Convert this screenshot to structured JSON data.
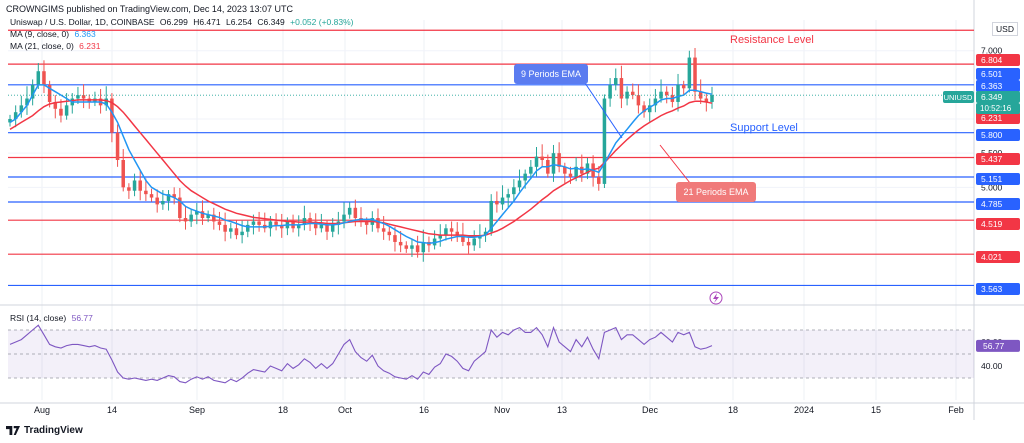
{
  "header": {
    "publisher": "CROWNGIMS published on TradingView.com, Dec 14, 2023 13:07 UTC"
  },
  "symbol_line": {
    "name": "Uniswap / U.S. Dollar, 1D, COINBASE",
    "o": "O6.299",
    "h": "H6.471",
    "l": "L6.254",
    "c": "C6.349",
    "chg": "+0.052 (+0.83%)"
  },
  "ma9": {
    "label": "MA (9, close, 0)",
    "value": "6.363",
    "color": "#2196f3"
  },
  "ma21": {
    "label": "MA (21, close, 0)",
    "value": "6.231",
    "color": "#f23645"
  },
  "rsi": {
    "label": "RSI (14, close)",
    "value": "56.77",
    "color": "#7e57c2"
  },
  "currency": "USD",
  "ticker_tag": "UNIUSD",
  "countdown": "10:52:16",
  "annotations": {
    "resistance": "Resistance Level",
    "support": "Support Level",
    "ema9": "9 Periods EMA",
    "ema21": "21 Periods EMA"
  },
  "footer_logo": "TradingView",
  "colors": {
    "up": "#26a69a",
    "down": "#ef5350",
    "blue_line": "#2962ff",
    "red_line": "#f23645"
  },
  "chart_data": {
    "type": "candlestick",
    "x_ticks": [
      "Aug",
      "14",
      "Sep",
      "18",
      "Oct",
      "16",
      "Nov",
      "13",
      "Dec",
      "18",
      "2024",
      "15",
      "Feb"
    ],
    "y_ticks": [
      "7.000",
      "5.500",
      "5.000"
    ],
    "rsi_ticks": [
      "60.00",
      "40.00"
    ],
    "price_tags": [
      {
        "value": "6.804",
        "style": "red"
      },
      {
        "value": "6.501",
        "style": "blue"
      },
      {
        "value": "6.363",
        "style": "blue"
      },
      {
        "value": "6.349",
        "style": "green"
      },
      {
        "value": "6.231",
        "style": "red"
      },
      {
        "value": "5.800",
        "style": "blue"
      },
      {
        "value": "5.437",
        "style": "red"
      },
      {
        "value": "5.151",
        "style": "blue"
      },
      {
        "value": "4.785",
        "style": "blue"
      },
      {
        "value": "4.519",
        "style": "red"
      },
      {
        "value": "4.021",
        "style": "red"
      },
      {
        "value": "3.563",
        "style": "blue"
      }
    ],
    "horizontal_levels": [
      {
        "value": 7.3,
        "color": "red"
      },
      {
        "value": 6.804,
        "color": "red"
      },
      {
        "value": 6.501,
        "color": "blue"
      },
      {
        "value": 5.8,
        "color": "blue"
      },
      {
        "value": 5.437,
        "color": "red"
      },
      {
        "value": 5.151,
        "color": "blue"
      },
      {
        "value": 4.785,
        "color": "blue"
      },
      {
        "value": 4.519,
        "color": "red"
      },
      {
        "value": 4.021,
        "color": "red"
      },
      {
        "value": 3.563,
        "color": "blue"
      }
    ],
    "close": [
      6.0,
      6.1,
      6.2,
      6.3,
      6.5,
      6.7,
      6.5,
      6.25,
      6.15,
      6.05,
      6.2,
      6.3,
      6.35,
      6.3,
      6.25,
      6.3,
      6.2,
      6.3,
      5.8,
      5.4,
      5.0,
      4.95,
      5.1,
      4.95,
      4.9,
      4.85,
      4.75,
      4.8,
      4.9,
      4.85,
      4.55,
      4.5,
      4.6,
      4.65,
      4.55,
      4.6,
      4.5,
      4.45,
      4.35,
      4.4,
      4.3,
      4.35,
      4.45,
      4.5,
      4.45,
      4.4,
      4.5,
      4.45,
      4.4,
      4.5,
      4.4,
      4.45,
      4.55,
      4.5,
      4.4,
      4.45,
      4.35,
      4.45,
      4.5,
      4.6,
      4.7,
      4.55,
      4.5,
      4.45,
      4.55,
      4.4,
      4.35,
      4.3,
      4.2,
      4.15,
      4.1,
      4.15,
      4.05,
      4.2,
      4.15,
      4.25,
      4.3,
      4.4,
      4.35,
      4.3,
      4.2,
      4.15,
      4.25,
      4.3,
      4.35,
      4.8,
      4.75,
      4.85,
      4.9,
      5.0,
      5.1,
      5.2,
      5.3,
      5.45,
      5.4,
      5.2,
      5.5,
      5.3,
      5.2,
      5.15,
      5.3,
      5.2,
      5.35,
      5.15,
      5.05,
      6.3,
      6.5,
      6.6,
      6.3,
      6.4,
      6.35,
      6.2,
      6.1,
      6.2,
      6.3,
      6.4,
      6.35,
      6.25,
      6.5,
      6.45,
      6.9,
      6.4,
      6.3,
      6.25,
      6.35
    ],
    "ma9": [
      5.95,
      6.0,
      6.1,
      6.2,
      6.35,
      6.5,
      6.5,
      6.45,
      6.4,
      6.35,
      6.3,
      6.25,
      6.25,
      6.25,
      6.25,
      6.25,
      6.25,
      6.22,
      6.1,
      5.95,
      5.75,
      5.55,
      5.4,
      5.25,
      5.1,
      5.0,
      4.95,
      4.9,
      4.88,
      4.85,
      4.8,
      4.72,
      4.68,
      4.65,
      4.62,
      4.6,
      4.58,
      4.56,
      4.52,
      4.5,
      4.47,
      4.44,
      4.42,
      4.42,
      4.42,
      4.42,
      4.43,
      4.44,
      4.44,
      4.45,
      4.45,
      4.45,
      4.46,
      4.47,
      4.47,
      4.46,
      4.45,
      4.45,
      4.46,
      4.48,
      4.5,
      4.52,
      4.53,
      4.53,
      4.53,
      4.5,
      4.47,
      4.43,
      4.38,
      4.33,
      4.28,
      4.24,
      4.2,
      4.19,
      4.18,
      4.19,
      4.21,
      4.24,
      4.26,
      4.28,
      4.28,
      4.27,
      4.27,
      4.28,
      4.3,
      4.4,
      4.5,
      4.6,
      4.7,
      4.8,
      4.92,
      5.03,
      5.13,
      5.24,
      5.3,
      5.3,
      5.33,
      5.32,
      5.3,
      5.27,
      5.28,
      5.26,
      5.27,
      5.25,
      5.22,
      5.35,
      5.5,
      5.65,
      5.75,
      5.85,
      5.95,
      6.05,
      6.12,
      6.17,
      6.22,
      6.28,
      6.3,
      6.3,
      6.33,
      6.35,
      6.42,
      6.42,
      6.4,
      6.38,
      6.363
    ],
    "ma21": [
      5.85,
      5.9,
      5.95,
      6.0,
      6.05,
      6.12,
      6.18,
      6.22,
      6.24,
      6.25,
      6.26,
      6.27,
      6.28,
      6.28,
      6.28,
      6.28,
      6.28,
      6.27,
      6.24,
      6.18,
      6.1,
      6.0,
      5.9,
      5.8,
      5.7,
      5.6,
      5.5,
      5.4,
      5.3,
      5.2,
      5.1,
      5.02,
      4.95,
      4.9,
      4.85,
      4.8,
      4.76,
      4.72,
      4.68,
      4.65,
      4.62,
      4.6,
      4.58,
      4.56,
      4.55,
      4.54,
      4.53,
      4.52,
      4.51,
      4.5,
      4.5,
      4.49,
      4.49,
      4.49,
      4.48,
      4.48,
      4.47,
      4.47,
      4.47,
      4.48,
      4.49,
      4.5,
      4.5,
      4.5,
      4.5,
      4.49,
      4.48,
      4.46,
      4.44,
      4.42,
      4.4,
      4.38,
      4.36,
      4.34,
      4.32,
      4.31,
      4.3,
      4.3,
      4.3,
      4.3,
      4.3,
      4.29,
      4.29,
      4.29,
      4.3,
      4.33,
      4.36,
      4.4,
      4.45,
      4.5,
      4.56,
      4.62,
      4.68,
      4.75,
      4.82,
      4.88,
      4.95,
      5.0,
      5.05,
      5.1,
      5.14,
      5.18,
      5.22,
      5.26,
      5.28,
      5.36,
      5.45,
      5.54,
      5.62,
      5.7,
      5.77,
      5.84,
      5.9,
      5.95,
      6.0,
      6.05,
      6.09,
      6.12,
      6.16,
      6.19,
      6.24,
      6.26,
      6.26,
      6.25,
      6.231
    ],
    "rsi": [
      58,
      60,
      62,
      66,
      70,
      74,
      66,
      58,
      56,
      55,
      57,
      58,
      58,
      57,
      56,
      57,
      55,
      54,
      45,
      35,
      30,
      29,
      30,
      29,
      28,
      29,
      28,
      30,
      32,
      31,
      27,
      26,
      29,
      31,
      29,
      31,
      28,
      27,
      26,
      29,
      27,
      30,
      34,
      37,
      36,
      35,
      40,
      38,
      36,
      42,
      38,
      41,
      46,
      43,
      38,
      42,
      38,
      42,
      50,
      58,
      62,
      52,
      47,
      44,
      49,
      40,
      36,
      34,
      31,
      30,
      29,
      32,
      29,
      35,
      33,
      39,
      42,
      50,
      48,
      44,
      38,
      36,
      44,
      48,
      52,
      70,
      64,
      68,
      66,
      70,
      72,
      68,
      68,
      72,
      66,
      56,
      72,
      60,
      56,
      52,
      62,
      56,
      64,
      54,
      46,
      68,
      70,
      72,
      62,
      66,
      66,
      62,
      58,
      62,
      64,
      68,
      64,
      60,
      68,
      66,
      68,
      56,
      54,
      55,
      57
    ]
  }
}
